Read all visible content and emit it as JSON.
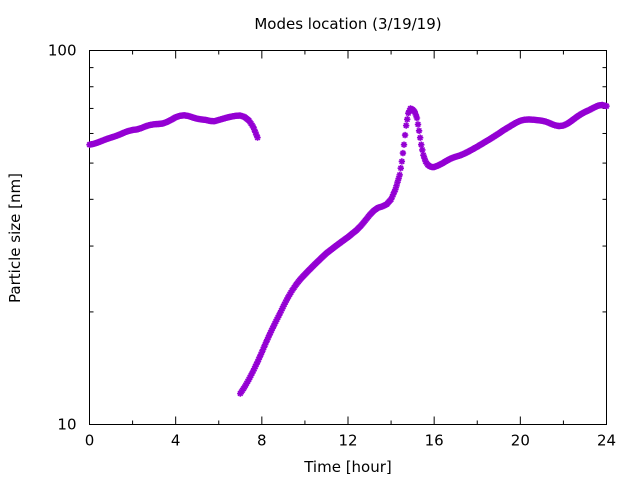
{
  "chart_data": {
    "type": "scatter",
    "title": "Modes location (3/19/19)",
    "xlabel": "Time [hour]",
    "ylabel": "Particle size [nm]",
    "xlim": [
      0,
      24
    ],
    "ylim": [
      10,
      100
    ],
    "yscale": "log",
    "x_ticks": [
      0,
      4,
      8,
      12,
      16,
      20,
      24
    ],
    "x_tick_labels": [
      "0",
      "4",
      "8",
      "12",
      "16",
      "20",
      "24"
    ],
    "y_tick_labels": [
      "10",
      "100"
    ],
    "grid": false,
    "legend": "none",
    "marker": "star",
    "color": "#9400d3",
    "series": [
      {
        "x": [
          0.0,
          0.2,
          0.4,
          0.6,
          0.8,
          1.0,
          1.2,
          1.4,
          1.6,
          1.8,
          2.0,
          2.2,
          2.4,
          2.6,
          2.8,
          3.0,
          3.2,
          3.4,
          3.6,
          3.8,
          4.0,
          4.2,
          4.4,
          4.6,
          4.8,
          5.0,
          5.2,
          5.4,
          5.6,
          5.8,
          6.0,
          6.2,
          6.4,
          6.6,
          6.8,
          7.0,
          7.2,
          7.4,
          7.6,
          7.8
        ],
        "y": [
          56.0,
          56.3,
          56.8,
          57.4,
          58.0,
          58.5,
          59.0,
          59.6,
          60.3,
          60.9,
          61.3,
          61.5,
          62.0,
          62.7,
          63.2,
          63.5,
          63.6,
          63.8,
          64.4,
          65.3,
          66.3,
          66.9,
          67.1,
          66.8,
          66.2,
          65.7,
          65.4,
          65.2,
          64.8,
          64.7,
          65.2,
          65.7,
          66.2,
          66.6,
          66.9,
          67.0,
          66.4,
          65.0,
          62.5,
          58.5
        ]
      },
      {
        "x": [
          7.0,
          7.2,
          7.4,
          7.6,
          7.8,
          8.0,
          8.2,
          8.4,
          8.6,
          8.8,
          9.0,
          9.2,
          9.4,
          9.6,
          9.8,
          10.0,
          10.2,
          10.4,
          10.6,
          10.8,
          11.0,
          11.2,
          11.4,
          11.6,
          11.8,
          12.0,
          12.2,
          12.4,
          12.6,
          12.8,
          13.0,
          13.2,
          13.4,
          13.6,
          13.8,
          14.0,
          14.2,
          14.4,
          14.5,
          14.6,
          14.7,
          14.8,
          14.9,
          15.0,
          15.1,
          15.2,
          15.3,
          15.4,
          15.5,
          15.6,
          15.7,
          15.8,
          15.9,
          16.0,
          16.2,
          16.4,
          16.6,
          16.8,
          17.0,
          17.2,
          17.4,
          17.6,
          17.8,
          18.0,
          18.2,
          18.4,
          18.6,
          18.8,
          19.0,
          19.2,
          19.4,
          19.6,
          19.8,
          20.0,
          20.2,
          20.4,
          20.6,
          20.8,
          21.0,
          21.2,
          21.4,
          21.6,
          21.8,
          22.0,
          22.2,
          22.4,
          22.6,
          22.8,
          23.0,
          23.2,
          23.4,
          23.6,
          23.8,
          24.0
        ],
        "y": [
          12.1,
          12.6,
          13.2,
          13.9,
          14.7,
          15.6,
          16.6,
          17.6,
          18.6,
          19.6,
          20.7,
          21.8,
          22.8,
          23.7,
          24.5,
          25.2,
          25.9,
          26.6,
          27.3,
          28.0,
          28.7,
          29.3,
          29.9,
          30.5,
          31.1,
          31.7,
          32.4,
          33.1,
          34.0,
          35.1,
          36.3,
          37.3,
          38.0,
          38.3,
          38.8,
          40.0,
          42.5,
          46.5,
          50.5,
          56.0,
          63.0,
          68.0,
          70.0,
          69.5,
          68.5,
          66.0,
          61.0,
          56.0,
          52.5,
          50.5,
          49.5,
          49.0,
          48.8,
          48.8,
          49.3,
          50.0,
          50.8,
          51.5,
          52.0,
          52.4,
          53.0,
          53.7,
          54.5,
          55.3,
          56.2,
          57.1,
          58.0,
          59.0,
          60.0,
          61.1,
          62.1,
          63.1,
          64.1,
          64.9,
          65.3,
          65.4,
          65.3,
          65.1,
          64.9,
          64.5,
          63.8,
          63.1,
          62.8,
          63.0,
          63.8,
          65.0,
          66.3,
          67.5,
          68.5,
          69.3,
          70.3,
          71.2,
          71.5,
          71.0
        ]
      }
    ]
  }
}
